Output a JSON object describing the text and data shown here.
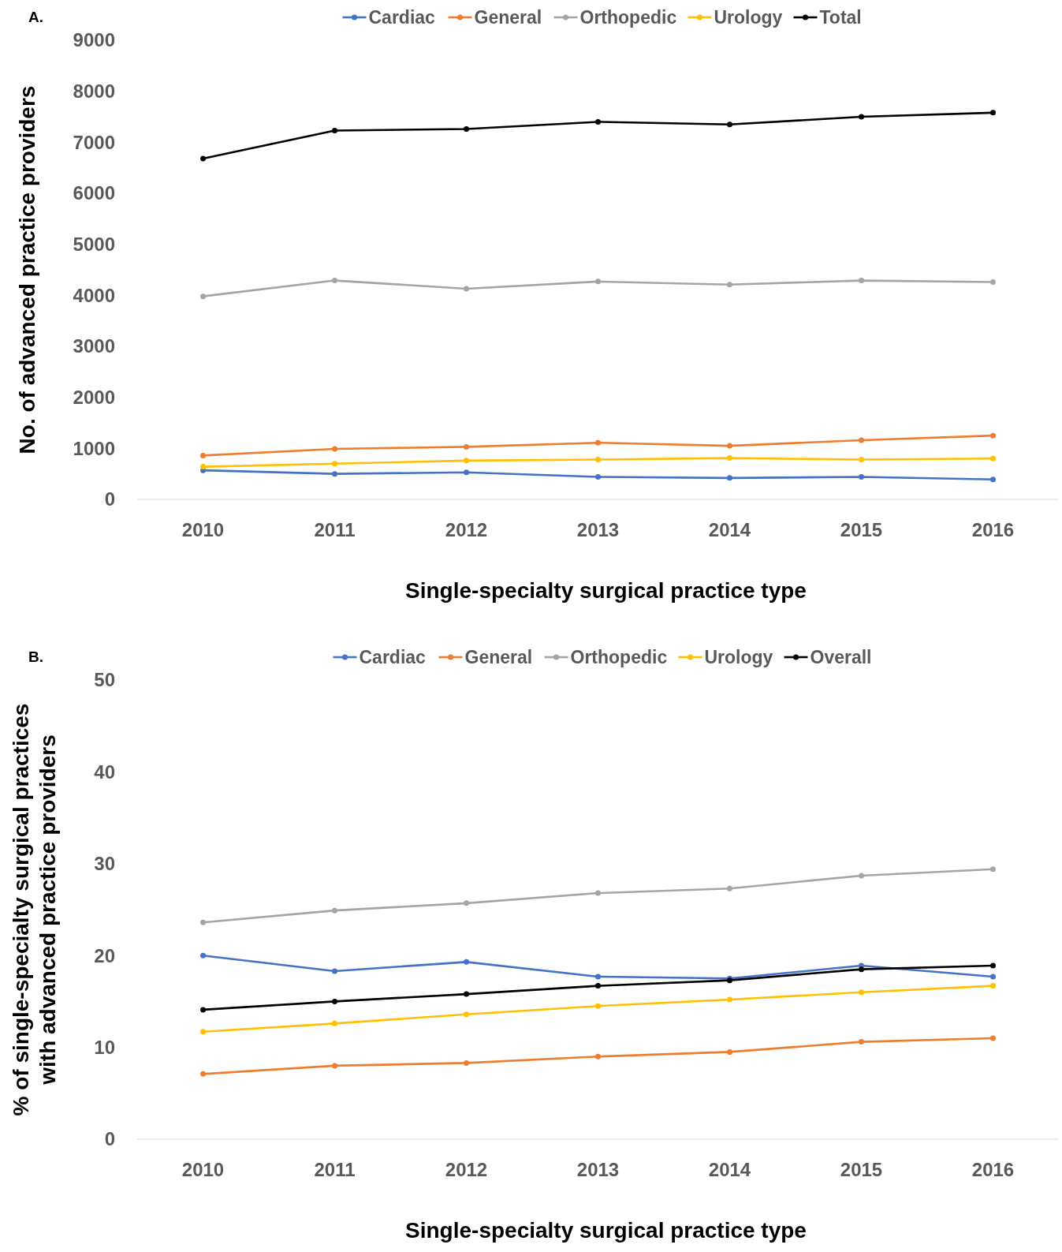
{
  "chart_data": [
    {
      "type": "line",
      "title": "A.",
      "xlabel": "Single-specialty surgical practice type",
      "ylabel": "No. of advanced practice providers",
      "categories": [
        "2010",
        "2011",
        "2012",
        "2013",
        "2014",
        "2015",
        "2016"
      ],
      "ylim": [
        0,
        9000
      ],
      "yticks": [
        0,
        1000,
        2000,
        3000,
        4000,
        5000,
        6000,
        7000,
        8000,
        9000
      ],
      "grid": false,
      "legend": "top",
      "marker": "circle",
      "series": [
        {
          "name": "Cardiac",
          "color": "#4472c4",
          "values": [
            570,
            500,
            530,
            440,
            420,
            440,
            390
          ]
        },
        {
          "name": "General",
          "color": "#ed7d31",
          "values": [
            860,
            990,
            1030,
            1110,
            1050,
            1160,
            1250
          ]
        },
        {
          "name": "Orthopedic",
          "color": "#a5a5a5",
          "values": [
            3980,
            4290,
            4130,
            4270,
            4210,
            4290,
            4260
          ]
        },
        {
          "name": "Urology",
          "color": "#ffc000",
          "values": [
            640,
            700,
            760,
            780,
            810,
            780,
            800
          ]
        },
        {
          "name": "Total",
          "color": "#000000",
          "values": [
            6680,
            7230,
            7260,
            7400,
            7350,
            7500,
            7580
          ]
        }
      ]
    },
    {
      "type": "line",
      "title": "B.",
      "xlabel": "Single-specialty surgical practice type",
      "ylabel": "% of single-specialty surgical practices\nwith advanced practice providers",
      "categories": [
        "2010",
        "2011",
        "2012",
        "2013",
        "2014",
        "2015",
        "2016"
      ],
      "ylim": [
        0,
        50
      ],
      "yticks": [
        0,
        10,
        20,
        30,
        40,
        50
      ],
      "grid": false,
      "legend": "top",
      "marker": "circle",
      "series": [
        {
          "name": "Cardiac",
          "color": "#4472c4",
          "values": [
            20.0,
            18.3,
            19.3,
            17.7,
            17.5,
            18.9,
            17.7
          ]
        },
        {
          "name": "General",
          "color": "#ed7d31",
          "values": [
            7.1,
            8.0,
            8.3,
            9.0,
            9.5,
            10.6,
            11.0
          ]
        },
        {
          "name": "Orthopedic",
          "color": "#a5a5a5",
          "values": [
            23.6,
            24.9,
            25.7,
            26.8,
            27.3,
            28.7,
            29.4
          ]
        },
        {
          "name": "Urology",
          "color": "#ffc000",
          "values": [
            11.7,
            12.6,
            13.6,
            14.5,
            15.2,
            16.0,
            16.7
          ]
        },
        {
          "name": "Overall",
          "color": "#000000",
          "values": [
            14.1,
            15.0,
            15.8,
            16.7,
            17.3,
            18.5,
            18.9
          ]
        }
      ]
    }
  ]
}
